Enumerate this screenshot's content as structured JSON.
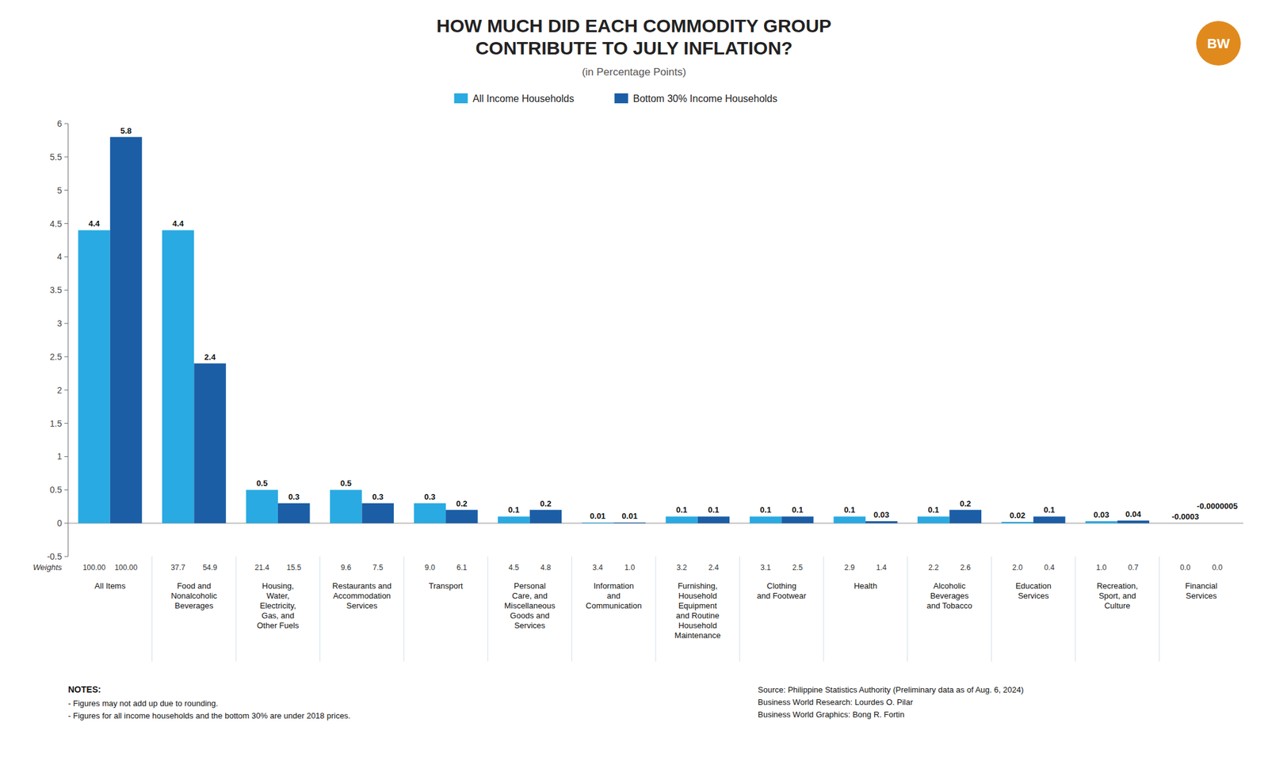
{
  "chart_data": {
    "type": "bar",
    "title": "HOW MUCH DID EACH COMMODITY GROUP\nCONTRIBUTE TO JULY INFLATION?",
    "subtitle": "(in Percentage Points)",
    "categories": [
      "All Items",
      "Food and\nNonalcoholic\nBeverages",
      "Housing,\nWater,\nElectricity,\nGas, and\nOther Fuels",
      "Restaurants and\nAccommodation\nServices",
      "Transport",
      "Personal\nCare, and\nMiscellaneous\nGoods and\nServices",
      "Information\nand\nCommunication",
      "Furnishing,\nHousehold\nEquipment\nand Routine\nHousehold\nMaintenance",
      "Clothing\nand Footwear",
      "Health",
      "Alcoholic\nBeverages\nand Tobacco",
      "Education\nServices",
      "Recreation,\nSport, and\nCulture",
      "Financial\nServices"
    ],
    "series": [
      {
        "name": "All Income Households",
        "color": "#29aae2",
        "values": [
          4.4,
          4.4,
          0.5,
          0.5,
          0.3,
          0.1,
          0.01,
          0.1,
          0.1,
          0.1,
          0.1,
          0.02,
          0.03,
          -0.0003
        ],
        "value_labels": [
          "4.4",
          "4.4",
          "0.5",
          "0.5",
          "0.3",
          "0.1",
          "0.01",
          "0.1",
          "0.1",
          "0.1",
          "0.1",
          "0.02",
          "0.03",
          "-0.0003"
        ],
        "weights": [
          100.0,
          37.7,
          21.4,
          9.6,
          9.0,
          4.5,
          3.4,
          3.2,
          3.1,
          2.9,
          2.2,
          2.0,
          1.0,
          0.0
        ],
        "weight_labels": [
          "100.00",
          "37.7",
          "21.4",
          "9.6",
          "9.0",
          "4.5",
          "3.4",
          "3.2",
          "3.1",
          "2.9",
          "2.2",
          "2.0",
          "1.0",
          "0.0"
        ]
      },
      {
        "name": "Bottom 30% Income Households",
        "color": "#1b5ea6",
        "values": [
          5.8,
          2.4,
          0.3,
          0.3,
          0.2,
          0.2,
          0.01,
          0.1,
          0.1,
          0.03,
          0.2,
          0.1,
          0.04,
          -5e-07
        ],
        "value_labels": [
          "5.8",
          "2.4",
          "0.3",
          "0.3",
          "0.2",
          "0.2",
          "0.01",
          "0.1",
          "0.1",
          "0.03",
          "0.2",
          "0.1",
          "0.04",
          "-0.0000005"
        ],
        "weights": [
          100.0,
          54.9,
          15.5,
          7.5,
          6.1,
          4.8,
          1.0,
          2.4,
          2.5,
          1.4,
          2.6,
          0.4,
          0.7,
          0.0
        ],
        "weight_labels": [
          "100.00",
          "54.9",
          "15.5",
          "7.5",
          "6.1",
          "4.8",
          "1.0",
          "2.4",
          "2.5",
          "1.4",
          "2.6",
          "0.4",
          "0.7",
          "0.0"
        ]
      }
    ],
    "weights_label": "Weights",
    "ylim": [
      -0.5,
      6
    ],
    "yticks": [
      -0.5,
      0,
      0.5,
      1,
      1.5,
      2,
      2.5,
      3,
      3.5,
      4,
      4.5,
      5,
      5.5,
      6
    ],
    "grid": false,
    "data_labels": true,
    "legend": "top",
    "notes_title": "NOTES:",
    "notes": [
      "- Figures may not add up due to rounding.",
      "- Figures for all income households and the bottom 30% are under 2018 prices."
    ],
    "source": [
      "Source: Philippine Statistics Authority (Preliminary data as of Aug. 6, 2024)",
      "Business World Research: Lourdes O. Pilar",
      "Business World Graphics: Bong R. Fortin"
    ],
    "logo": "BW"
  }
}
